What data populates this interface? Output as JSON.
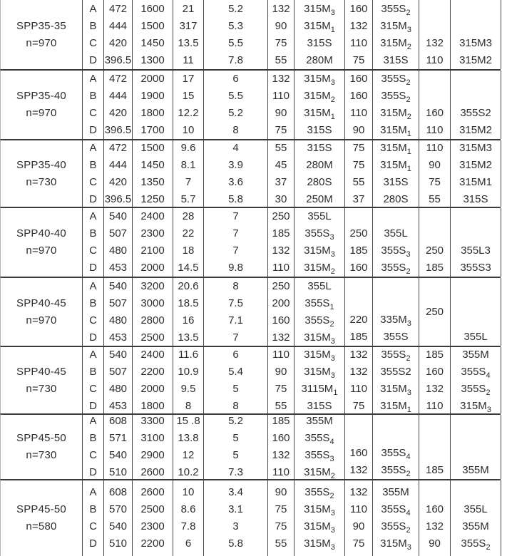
{
  "table": {
    "groups": [
      {
        "model": "SPP35-35",
        "speed": "n=970",
        "letters": [
          "A",
          "B",
          "C",
          "D"
        ],
        "cols": {
          "c1": [
            "472",
            "444",
            "420",
            "396.5"
          ],
          "c2": [
            "1600",
            "1500",
            "1450",
            "1300"
          ],
          "c3": [
            "21",
            "317",
            "13.5",
            "11"
          ],
          "c4": [
            "5.2",
            "5.3",
            "5.5",
            "7.8"
          ],
          "c5": [
            "132",
            "90",
            "75",
            "55"
          ],
          "m1": [
            "315M_3",
            "315M_1",
            "315S",
            "280M"
          ],
          "c6": [
            "160",
            "132",
            "110",
            "75"
          ],
          "m2": [
            "355S_2",
            "315M_3",
            "315M_2",
            "315S"
          ],
          "c7": [
            "",
            "",
            "132",
            "110"
          ],
          "m3": [
            "",
            "",
            "315M3",
            "315M2"
          ]
        }
      },
      {
        "model": "SPP35-40",
        "speed": "n=970",
        "letters": [
          "A",
          "B",
          "C",
          "D"
        ],
        "cols": {
          "c1": [
            "472",
            "444",
            "420",
            "396.5"
          ],
          "c2": [
            "2000",
            "1900",
            "1800",
            "1700"
          ],
          "c3": [
            "17",
            "15",
            "12.2",
            "10"
          ],
          "c4": [
            "6",
            "5.5",
            "5.2",
            "8"
          ],
          "c5": [
            "132",
            "110",
            "90",
            "75"
          ],
          "m1": [
            "315M_3",
            "315M_2",
            "315M_1",
            "315S"
          ],
          "c6": [
            "160",
            "160",
            "110",
            "90"
          ],
          "m2": [
            "355S_2",
            "355S_2",
            "315M_2",
            "315M_1"
          ],
          "c7": [
            "",
            "",
            "160",
            "110"
          ],
          "m3": [
            "",
            "",
            "355S2",
            "315M2"
          ]
        }
      },
      {
        "model": "SPP35-40",
        "speed": "n=730",
        "letters": [
          "A",
          "B",
          "C",
          "D"
        ],
        "cols": {
          "c1": [
            "472",
            "444",
            "420",
            "396.5"
          ],
          "c2": [
            "1500",
            "1450",
            "1350",
            "1250"
          ],
          "c3": [
            "9.6",
            "8.1",
            "7",
            "5.7"
          ],
          "c4": [
            "4",
            "3.9",
            "3.6",
            "5.8"
          ],
          "c5": [
            "55",
            "45",
            "37",
            "30"
          ],
          "m1": [
            "315S",
            "280M",
            "280S",
            "250M"
          ],
          "c6": [
            "75",
            "75",
            "55",
            "37"
          ],
          "m2": [
            "315M_1",
            "315M_1",
            "315S",
            "280S"
          ],
          "c7": [
            "110",
            "90",
            "75",
            "55"
          ],
          "m3": [
            "315M3",
            "315M2",
            "315M1",
            "315S"
          ]
        }
      },
      {
        "model": "SPP40-40",
        "speed": "n=970",
        "letters": [
          "A",
          "B",
          "C",
          "D"
        ],
        "cols": {
          "c1": [
            "540",
            "507",
            "480",
            "453"
          ],
          "c2": [
            "2400",
            "2300",
            "2100",
            "2000"
          ],
          "c3": [
            "28",
            "22",
            "18",
            "14.5"
          ],
          "c4": [
            "7",
            "7",
            "7",
            "9.8"
          ],
          "c5": [
            "250",
            "185",
            "132",
            "110"
          ],
          "m1": [
            "355L",
            "355S_3",
            "315M_3",
            "315M_2"
          ],
          "c6": [
            "",
            "250",
            "185",
            "160"
          ],
          "m2": [
            "",
            "355L",
            "355S_3",
            "355S_2"
          ],
          "c7": [
            "",
            "",
            "250",
            "185"
          ],
          "m3": [
            "",
            "",
            "355L3",
            "355S3"
          ]
        }
      },
      {
        "model": "SPP40-45",
        "speed": "n=970",
        "letters": [
          "A",
          "B",
          "C",
          "D"
        ],
        "cols": {
          "c1": [
            "540",
            "507",
            "480",
            "453"
          ],
          "c2": [
            "3200",
            "3000",
            "2800",
            "2500"
          ],
          "c3": [
            "20.6",
            "18.5",
            "16",
            "13.5"
          ],
          "c4": [
            "8",
            "7.5",
            "7.1",
            "7"
          ],
          "c5": [
            "250",
            "200",
            "160",
            "132"
          ],
          "m1": [
            "355L",
            "355S_1",
            "355S_2",
            "315M_3"
          ],
          "c6": [
            "",
            "",
            "220",
            "185"
          ],
          "m2": [
            "",
            "",
            "335M_3",
            "355S"
          ],
          "c7": [
            "",
            "",
            "",
            ""
          ],
          "m3": [
            "",
            "",
            "",
            "355L"
          ]
        },
        "spans": {
          "c7": "250"
        }
      },
      {
        "model": "SPP40-45",
        "speed": "n=730",
        "letters": [
          "A",
          "B",
          "C",
          "D"
        ],
        "cols": {
          "c1": [
            "540",
            "507",
            "480",
            "453"
          ],
          "c2": [
            "2400",
            "2200",
            "2000",
            "1800"
          ],
          "c3": [
            "11.6",
            "10.9",
            "9.5",
            "8"
          ],
          "c4": [
            "6",
            "5.4",
            "5",
            "8"
          ],
          "c5": [
            "110",
            "90",
            "75",
            "55"
          ],
          "m1": [
            "315M_3",
            "315M_3",
            "3115M_1",
            "315S"
          ],
          "c6": [
            "132",
            "132",
            "110",
            "75"
          ],
          "m2": [
            "355S_2",
            "355S2",
            "315M_3",
            "315M_1"
          ],
          "c7": [
            "185",
            "160",
            "132",
            "110"
          ],
          "m3": [
            "355M",
            "355S_4",
            "355S_2",
            "315M_3"
          ]
        }
      },
      {
        "model": "SPP45-50",
        "speed": "n=730",
        "letters": [
          "A",
          "B",
          "C",
          "D"
        ],
        "cols": {
          "c1": [
            "608",
            "571",
            "540",
            "510"
          ],
          "c2": [
            "3300",
            "3100",
            "2900",
            "2600"
          ],
          "c3": [
            "15 .8",
            "13.8",
            "12",
            "10.2"
          ],
          "c4": [
            "5.2",
            "5",
            "5",
            "7.3"
          ],
          "c5": [
            "185",
            "160",
            "132",
            "110"
          ],
          "m1": [
            "355M",
            "355S_4",
            "355S_3",
            "315M_2"
          ],
          "c6": [
            "",
            "",
            "160",
            "132"
          ],
          "m2": [
            "",
            "",
            "355S_4",
            "355S_2"
          ],
          "c7": [
            "",
            "",
            "",
            "185"
          ],
          "m3": [
            "",
            "",
            "",
            "355M"
          ]
        }
      },
      {
        "model": "SPP45-50",
        "speed": "n=580",
        "letters": [
          "A",
          "B",
          "C",
          "D"
        ],
        "cols": {
          "c1": [
            "608",
            "570",
            "540",
            "510"
          ],
          "c2": [
            "2600",
            "2500",
            "2300",
            "2200"
          ],
          "c3": [
            "10",
            "8.6",
            "7.8",
            "6"
          ],
          "c4": [
            "3.4",
            "3.1",
            "3",
            "5.8"
          ],
          "c5": [
            "90",
            "75",
            "75",
            "55"
          ],
          "m1": [
            "355S_2",
            "315M_3",
            "315M_3",
            "315M_3"
          ],
          "c6": [
            "132",
            "110",
            "90",
            "75"
          ],
          "m2": [
            "355M",
            "355S_4",
            "355S_2",
            "315M_3"
          ],
          "c7": [
            "",
            "160",
            "132",
            "90"
          ],
          "m3": [
            "",
            "355L",
            "355M",
            "355S_2"
          ]
        }
      }
    ]
  }
}
